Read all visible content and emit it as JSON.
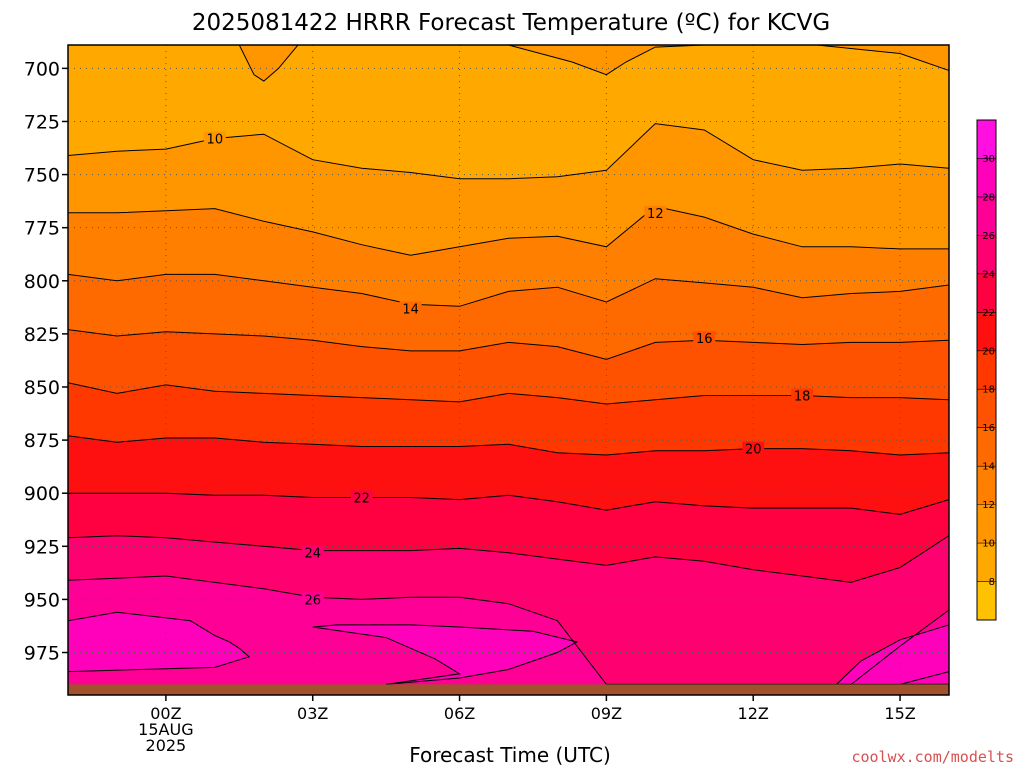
{
  "chart_data": {
    "type": "contour",
    "title": "2025081422 HRRR Forecast Temperature (ºC) for KCVG",
    "xlabel": "Forecast Time (UTC)",
    "ylabel": "",
    "credit": "coolwx.com/modelts",
    "x_ticks": [
      {
        "hour": 0,
        "lines": [
          "00Z",
          "15AUG",
          "2025"
        ]
      },
      {
        "hour": 3,
        "lines": [
          "03Z"
        ]
      },
      {
        "hour": 6,
        "lines": [
          "06Z"
        ]
      },
      {
        "hour": 9,
        "lines": [
          "09Z"
        ]
      },
      {
        "hour": 12,
        "lines": [
          "12Z"
        ]
      },
      {
        "hour": 15,
        "lines": [
          "15Z"
        ]
      }
    ],
    "xlim": [
      -2,
      16
    ],
    "y_ticks": [
      700,
      725,
      750,
      775,
      800,
      825,
      850,
      875,
      900,
      925,
      950,
      975
    ],
    "ylim": [
      689,
      995
    ],
    "y_unit": "hPa",
    "ground_level_hPa": 990,
    "hours": [
      -2,
      -1,
      0,
      1,
      2,
      3,
      4,
      5,
      6,
      7,
      8,
      9,
      10,
      11,
      12,
      13,
      14,
      15,
      16
    ],
    "isotherms": [
      {
        "level": 10,
        "label": "10",
        "label_at": {
          "hour": 1,
          "hPa": 733
        },
        "p": [
          741,
          739,
          738,
          733,
          731,
          743,
          747,
          749,
          752,
          752,
          751,
          748,
          726,
          729,
          743,
          748,
          747,
          745,
          747
        ]
      },
      {
        "level": 12,
        "label": "12",
        "label_at": {
          "hour": 10,
          "hPa": 768
        },
        "p": [
          768,
          768,
          767,
          766,
          772,
          777,
          783,
          788,
          784,
          780,
          779,
          784,
          765,
          770,
          778,
          784,
          784,
          785,
          785
        ]
      },
      {
        "level": 14,
        "label": "14",
        "label_at": {
          "hour": 5,
          "hPa": 813
        },
        "p": [
          797,
          800,
          797,
          797,
          800,
          803,
          806,
          811,
          812,
          805,
          803,
          810,
          799,
          801,
          803,
          808,
          806,
          805,
          802
        ]
      },
      {
        "level": 16,
        "label": "16",
        "label_at": {
          "hour": 11,
          "hPa": 827
        },
        "p": [
          823,
          826,
          824,
          825,
          826,
          828,
          831,
          833,
          833,
          829,
          831,
          837,
          829,
          828,
          829,
          830,
          829,
          829,
          828
        ]
      },
      {
        "level": 18,
        "label": "18",
        "label_at": {
          "hour": 13,
          "hPa": 854
        },
        "p": [
          848,
          853,
          849,
          852,
          853,
          854,
          855,
          856,
          857,
          853,
          855,
          858,
          856,
          854,
          854,
          854,
          855,
          855,
          856
        ]
      },
      {
        "level": 20,
        "label": "20",
        "label_at": {
          "hour": 12,
          "hPa": 879
        },
        "p": [
          873,
          876,
          874,
          874,
          876,
          877,
          878,
          878,
          878,
          877,
          881,
          882,
          880,
          880,
          879,
          879,
          880,
          882,
          881
        ]
      },
      {
        "level": 22,
        "label": "22",
        "label_at": {
          "hour": 4,
          "hPa": 902
        },
        "p": [
          900,
          900,
          900,
          901,
          901,
          902,
          902,
          902,
          903,
          901,
          904,
          908,
          904,
          906,
          907,
          907,
          907,
          910,
          903
        ]
      },
      {
        "level": 24,
        "label": "24",
        "label_at": {
          "hour": 3,
          "hPa": 928
        },
        "p": [
          921,
          920,
          921,
          923,
          925,
          927,
          927,
          927,
          926,
          928,
          931,
          934,
          930,
          932,
          936,
          939,
          942,
          935,
          920
        ]
      },
      {
        "level": 26,
        "label": "26",
        "label_at": {
          "hour": 3,
          "hPa": 950
        },
        "p": [
          941,
          940,
          939,
          942,
          945,
          949,
          950,
          949,
          949,
          952,
          960,
          990,
          990,
          990,
          990,
          990,
          990,
          972,
          955
        ]
      }
    ],
    "pockets": [
      {
        "level": 10,
        "shade": "warmer-inside",
        "pts": [
          [
            1.5,
            689
          ],
          [
            1.8,
            703
          ],
          [
            2.0,
            706
          ],
          [
            2.3,
            700
          ],
          [
            2.7,
            689
          ]
        ]
      },
      {
        "level": 10,
        "shade": "warmer-inside",
        "pts": [
          [
            7.0,
            689
          ],
          [
            8.3,
            697
          ],
          [
            9.0,
            703
          ],
          [
            9.4,
            697
          ],
          [
            10.0,
            690
          ],
          [
            11.0,
            689
          ]
        ]
      },
      {
        "level": 10,
        "shade": "warmer-inside",
        "pts": [
          [
            13.3,
            689
          ],
          [
            15.0,
            693
          ],
          [
            16.0,
            701
          ],
          [
            16.0,
            689
          ]
        ]
      },
      {
        "level": 28,
        "shade": "warmer-inside",
        "pts": [
          [
            -2,
            960
          ],
          [
            -1.0,
            956
          ],
          [
            0.5,
            960
          ],
          [
            1.0,
            967
          ],
          [
            1.3,
            970
          ],
          [
            1.5,
            973
          ],
          [
            1.7,
            977
          ],
          [
            1.0,
            982
          ],
          [
            -2,
            984
          ]
        ]
      },
      {
        "level": 28,
        "shade": "warmer-inside",
        "pts": [
          [
            4.5,
            990
          ],
          [
            6.0,
            987
          ],
          [
            7.0,
            983
          ],
          [
            8.0,
            975
          ],
          [
            8.4,
            970
          ],
          [
            7.5,
            965
          ],
          [
            6.0,
            963
          ],
          [
            5.0,
            962
          ],
          [
            3.5,
            962
          ],
          [
            3.0,
            963
          ],
          [
            4.5,
            968
          ],
          [
            5.5,
            978
          ],
          [
            6.0,
            985
          ],
          [
            4.5,
            990
          ]
        ]
      },
      {
        "level": 28,
        "shade": "warmer-inside",
        "pts": [
          [
            13.7,
            990
          ],
          [
            14.2,
            979
          ],
          [
            15.0,
            969
          ],
          [
            16.0,
            962
          ],
          [
            16.0,
            990
          ]
        ]
      },
      {
        "level": 28,
        "shade": "warmer-inside",
        "pts": [
          [
            15.0,
            990
          ],
          [
            16.0,
            984
          ],
          [
            16.0,
            990
          ]
        ]
      }
    ],
    "colorbar": {
      "ticks": [
        8,
        10,
        12,
        14,
        16,
        18,
        20,
        22,
        24,
        26,
        28,
        30
      ],
      "colors": [
        "#ffc200",
        "#ffa800",
        "#ff9600",
        "#ff8000",
        "#ff6a00",
        "#ff5200",
        "#ff3800",
        "#ff1010",
        "#ff0040",
        "#ff0070",
        "#ff0096",
        "#ff00bb",
        "#ff10e0"
      ]
    },
    "ground_color": "#a0522d",
    "grid": true,
    "legend": "right-colorbar"
  }
}
